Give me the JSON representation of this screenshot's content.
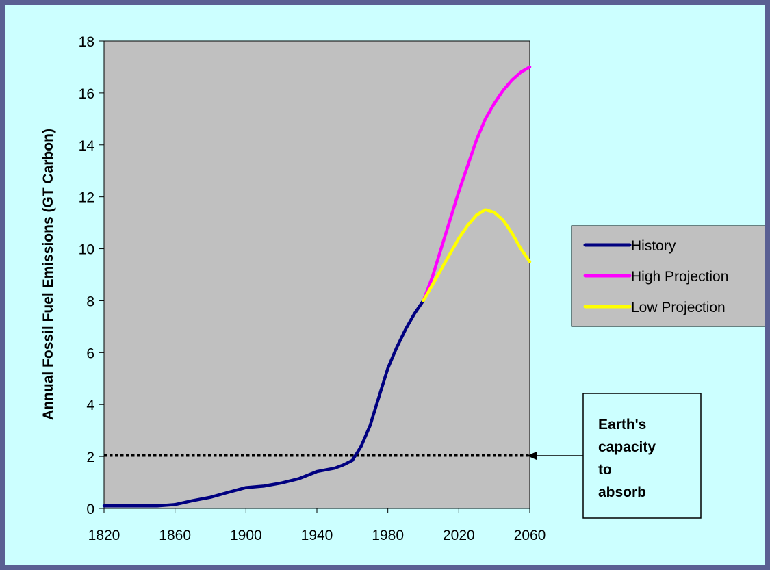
{
  "chart_data": {
    "type": "line",
    "title": "",
    "xlabel": "",
    "ylabel": "Annual Fossil Fuel Emissions (GT Carbon)",
    "xlim": [
      1820,
      2060
    ],
    "ylim": [
      0,
      18
    ],
    "x_ticks": [
      1820,
      1860,
      1900,
      1940,
      1980,
      2020,
      2060
    ],
    "y_ticks": [
      0,
      2,
      4,
      6,
      8,
      10,
      12,
      14,
      16,
      18
    ],
    "grid": false,
    "legend_placement": "right",
    "plot_background": "#c0c0c0",
    "series": [
      {
        "name": "History",
        "color": "#000080",
        "x": [
          1820,
          1830,
          1840,
          1850,
          1860,
          1870,
          1880,
          1890,
          1900,
          1910,
          1920,
          1930,
          1940,
          1950,
          1955,
          1960,
          1965,
          1970,
          1975,
          1980,
          1985,
          1990,
          1995,
          2000
        ],
        "y": [
          0.1,
          0.1,
          0.1,
          0.1,
          0.15,
          0.3,
          0.43,
          0.62,
          0.8,
          0.86,
          0.98,
          1.15,
          1.42,
          1.55,
          1.68,
          1.85,
          2.4,
          3.2,
          4.3,
          5.4,
          6.2,
          6.9,
          7.5,
          8.0
        ]
      },
      {
        "name": "High Projection",
        "color": "#ff00ff",
        "x": [
          2000,
          2005,
          2010,
          2015,
          2020,
          2025,
          2030,
          2035,
          2040,
          2045,
          2050,
          2055,
          2060
        ],
        "y": [
          8.0,
          8.9,
          10.0,
          11.1,
          12.2,
          13.2,
          14.2,
          15.0,
          15.6,
          16.1,
          16.5,
          16.8,
          17.0
        ]
      },
      {
        "name": "Low Projection",
        "color": "#ffff00",
        "x": [
          2000,
          2005,
          2010,
          2015,
          2020,
          2025,
          2030,
          2035,
          2040,
          2045,
          2050,
          2055,
          2060
        ],
        "y": [
          8.0,
          8.6,
          9.2,
          9.8,
          10.4,
          10.9,
          11.3,
          11.5,
          11.4,
          11.1,
          10.6,
          10.0,
          9.5
        ]
      }
    ],
    "reference_line": {
      "y": 2.05,
      "style": "dotted",
      "color": "#000000"
    },
    "annotation": {
      "text_lines": [
        "Earth's",
        "capacity",
        "to",
        "absorb"
      ],
      "points_to": "reference line"
    }
  }
}
